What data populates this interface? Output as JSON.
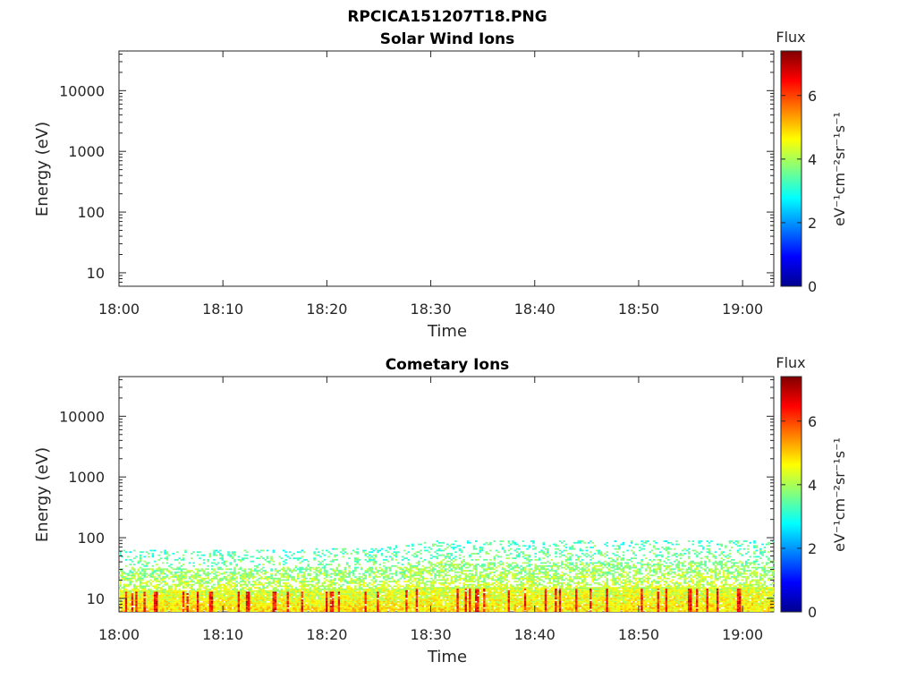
{
  "figure_title": "RPCICA151207T18.PNG",
  "colors": {
    "colormap": [
      "#00008f",
      "#0000ff",
      "#0080ff",
      "#00ffff",
      "#80ff80",
      "#ffff00",
      "#ff8000",
      "#ff0000",
      "#800000"
    ]
  },
  "chart_data": [
    {
      "type": "heatmap",
      "title": "Solar Wind Ions",
      "xlabel": "Time",
      "ylabel": "Energy (eV)",
      "xticks": [
        "18:00",
        "18:10",
        "18:20",
        "18:30",
        "18:40",
        "18:50",
        "19:00"
      ],
      "xlim_minutes": [
        0,
        63
      ],
      "yscale": "log",
      "ylim": [
        6,
        45000
      ],
      "yticks": [
        {
          "value": 10,
          "label": "10"
        },
        {
          "value": 100,
          "label": "100"
        },
        {
          "value": 1000,
          "label": "1000"
        },
        {
          "value": 10000,
          "label": "10000"
        }
      ],
      "colorbar": {
        "title": "Flux",
        "unit_label": "eV⁻¹cm⁻²sr⁻¹s⁻¹",
        "range": [
          0,
          7.4
        ],
        "ticks": [
          "0",
          "2",
          "4",
          "6"
        ]
      },
      "data": "empty"
    },
    {
      "type": "heatmap",
      "title": "Cometary Ions",
      "xlabel": "Time",
      "ylabel": "Energy (eV)",
      "xticks": [
        "18:00",
        "18:10",
        "18:20",
        "18:30",
        "18:40",
        "18:50",
        "19:00"
      ],
      "xlim_minutes": [
        0,
        63
      ],
      "yscale": "log",
      "ylim": [
        6,
        45000
      ],
      "yticks": [
        {
          "value": 10,
          "label": "10"
        },
        {
          "value": 100,
          "label": "100"
        },
        {
          "value": 1000,
          "label": "1000"
        },
        {
          "value": 10000,
          "label": "10000"
        }
      ],
      "colorbar": {
        "title": "Flux",
        "unit_label": "eV⁻¹cm⁻²sr⁻¹s⁻¹",
        "range": [
          0,
          7.4
        ],
        "ticks": [
          "0",
          "2",
          "4",
          "6"
        ]
      },
      "data": {
        "energy_band_eV": [
          6,
          90
        ],
        "typical_max_energy_eV": [
          {
            "time_min": 0,
            "max_energy": 60
          },
          {
            "time_min": 25,
            "max_energy": 65
          },
          {
            "time_min": 30,
            "max_energy": 85
          },
          {
            "time_min": 63,
            "max_energy": 85
          }
        ],
        "peak_flux": 7,
        "peak_energy_eV": [
          6,
          15
        ]
      }
    }
  ]
}
